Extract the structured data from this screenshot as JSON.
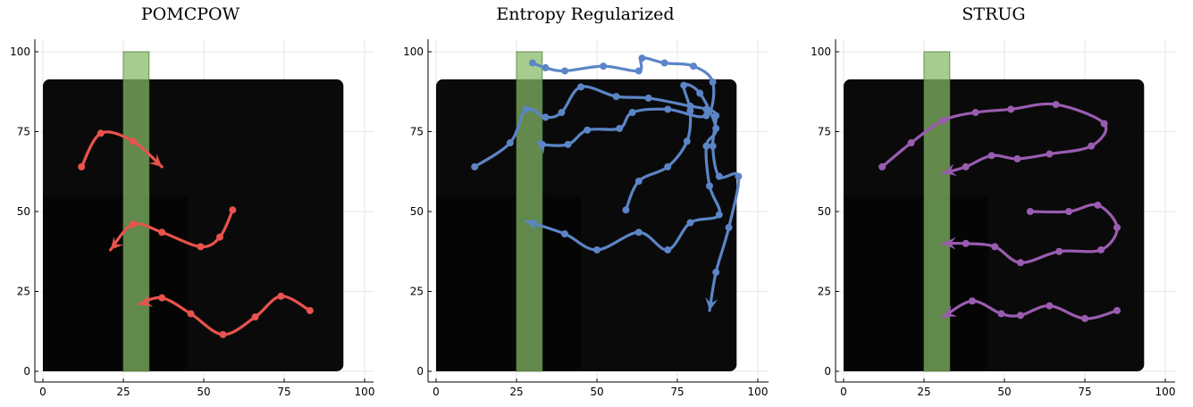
{
  "chart_data": [
    {
      "type": "line",
      "title": "POMCPOW",
      "xlim": [
        0,
        100
      ],
      "ylim": [
        0,
        100
      ],
      "xticks": [
        "0",
        "25",
        "50",
        "75",
        "100"
      ],
      "yticks": [
        "0",
        "25",
        "50",
        "75",
        "100"
      ],
      "grid": true,
      "background": "heatmap-gradient",
      "obstacle": {
        "x": [
          25,
          33
        ],
        "y": [
          0,
          100
        ],
        "color": "#a8d98a"
      },
      "series_color": "#e8534d",
      "series": [
        {
          "points": [
            [
              12,
              64
            ],
            [
              18,
              74.5
            ],
            [
              28,
              72
            ],
            [
              37,
              64
            ]
          ]
        },
        {
          "points": [
            [
              59,
              50.5
            ],
            [
              55,
              42
            ],
            [
              49,
              39
            ],
            [
              37,
              43.5
            ],
            [
              28,
              46
            ],
            [
              21,
              38
            ]
          ]
        },
        {
          "points": [
            [
              83,
              19
            ],
            [
              74,
              23.5
            ],
            [
              66,
              17
            ],
            [
              56,
              11.5
            ],
            [
              46,
              18
            ],
            [
              37,
              23
            ],
            [
              30,
              21
            ]
          ]
        }
      ]
    },
    {
      "type": "line",
      "title": "Entropy Regularized",
      "xlim": [
        0,
        100
      ],
      "ylim": [
        0,
        100
      ],
      "xticks": [
        "0",
        "25",
        "50",
        "75",
        "100"
      ],
      "yticks": [
        "0",
        "25",
        "50",
        "75",
        "100"
      ],
      "grid": true,
      "background": "heatmap-gradient",
      "obstacle": {
        "x": [
          25,
          33
        ],
        "y": [
          0,
          100
        ],
        "color": "#a8d98a"
      },
      "series_color": "#5b85c6",
      "series": [
        {
          "points": [
            [
              12,
              64
            ],
            [
              23,
              71.5
            ],
            [
              28,
              82
            ],
            [
              34,
              79.5
            ],
            [
              39,
              81
            ],
            [
              45,
              89
            ],
            [
              56,
              86
            ],
            [
              66,
              85.5
            ],
            [
              79,
              83
            ],
            [
              84,
              82
            ],
            [
              87,
              80
            ],
            [
              86,
              70.5
            ],
            [
              88,
              61
            ],
            [
              94,
              61
            ],
            [
              91,
              45
            ],
            [
              87,
              31
            ],
            [
              85,
              19
            ]
          ]
        },
        {
          "points": [
            [
              59,
              50.5
            ],
            [
              63,
              59.5
            ],
            [
              72,
              64
            ],
            [
              78,
              72
            ],
            [
              79,
              81.5
            ],
            [
              77,
              89.5
            ],
            [
              82,
              87
            ],
            [
              87,
              76
            ],
            [
              84,
              70.5
            ],
            [
              85,
              58
            ],
            [
              88,
              49
            ],
            [
              79,
              46.5
            ],
            [
              72,
              38
            ],
            [
              63,
              43.5
            ],
            [
              50,
              38
            ],
            [
              40,
              43
            ],
            [
              28,
              47
            ]
          ]
        },
        {
          "points": [
            [
              30,
              96.5
            ],
            [
              34,
              95
            ],
            [
              40,
              94
            ],
            [
              52,
              95.5
            ],
            [
              63,
              94
            ],
            [
              64,
              98
            ],
            [
              71,
              96.5
            ],
            [
              80,
              95.5
            ],
            [
              86,
              90.5
            ],
            [
              84,
              80
            ],
            [
              72,
              82
            ],
            [
              61,
              81
            ],
            [
              57,
              76
            ],
            [
              47,
              75.5
            ],
            [
              41,
              71
            ],
            [
              33,
              71
            ],
            [
              32,
              72
            ]
          ]
        }
      ]
    },
    {
      "type": "line",
      "title": "STRUG",
      "xlim": [
        0,
        100
      ],
      "ylim": [
        0,
        100
      ],
      "xticks": [
        "0",
        "25",
        "50",
        "75",
        "100"
      ],
      "yticks": [
        "0",
        "25",
        "50",
        "75",
        "100"
      ],
      "grid": true,
      "background": "heatmap-gradient",
      "obstacle": {
        "x": [
          25,
          33
        ],
        "y": [
          0,
          100
        ],
        "color": "#a8d98a"
      },
      "series_color": "#9a5cb0",
      "series": [
        {
          "points": [
            [
              12,
              64
            ],
            [
              21,
              71.5
            ],
            [
              31,
              78.5
            ],
            [
              41,
              81
            ],
            [
              52,
              82
            ],
            [
              66,
              83.5
            ],
            [
              81,
              77.5
            ],
            [
              77,
              70.5
            ],
            [
              64,
              68
            ],
            [
              54,
              66.5
            ],
            [
              46,
              67.5
            ],
            [
              38,
              64
            ],
            [
              31,
              62
            ]
          ]
        },
        {
          "points": [
            [
              58,
              50
            ],
            [
              70,
              50
            ],
            [
              79,
              52
            ],
            [
              85,
              45
            ],
            [
              80,
              38
            ],
            [
              67,
              37.5
            ],
            [
              55,
              34
            ],
            [
              47,
              39
            ],
            [
              38,
              40
            ],
            [
              31,
              40
            ]
          ]
        },
        {
          "points": [
            [
              85,
              19
            ],
            [
              75,
              16.5
            ],
            [
              64,
              20.5
            ],
            [
              55,
              17.5
            ],
            [
              49,
              18
            ],
            [
              40,
              22
            ],
            [
              31,
              17
            ]
          ]
        }
      ]
    }
  ]
}
